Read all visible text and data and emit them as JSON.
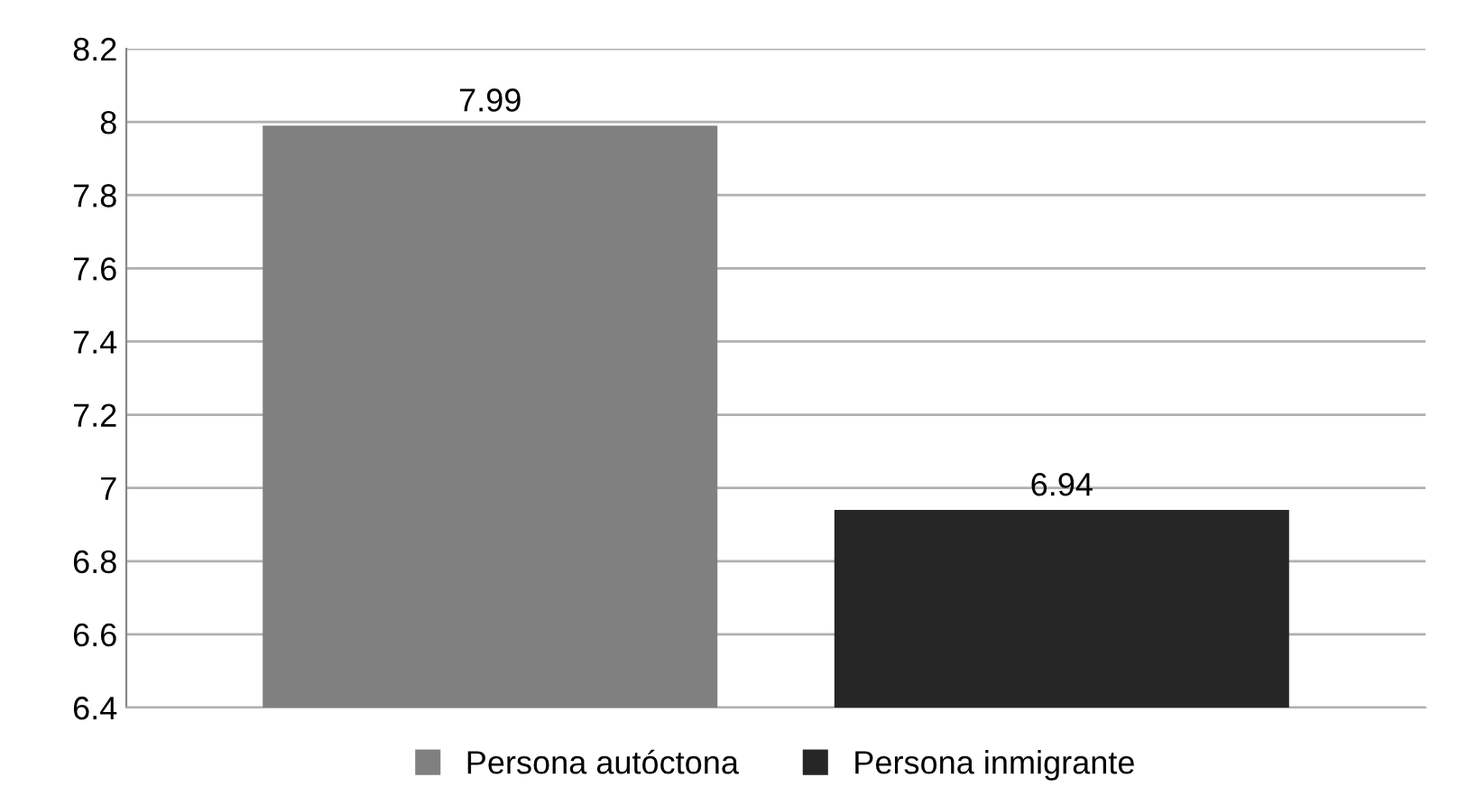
{
  "chart_data": {
    "type": "bar",
    "categories": [
      null
    ],
    "series": [
      {
        "name": "Persona autóctona",
        "color": "#808080",
        "values": [
          7.99
        ]
      },
      {
        "name": "Persona inmigrante",
        "color": "#262626",
        "values": [
          6.94
        ]
      }
    ],
    "ylim": [
      6.4,
      8.2
    ],
    "yticks": [
      6.4,
      6.6,
      6.8,
      7,
      7.2,
      7.4,
      7.6,
      7.8,
      8,
      8.2
    ],
    "grid": "y",
    "legend": "bottom",
    "data_labels": true
  }
}
